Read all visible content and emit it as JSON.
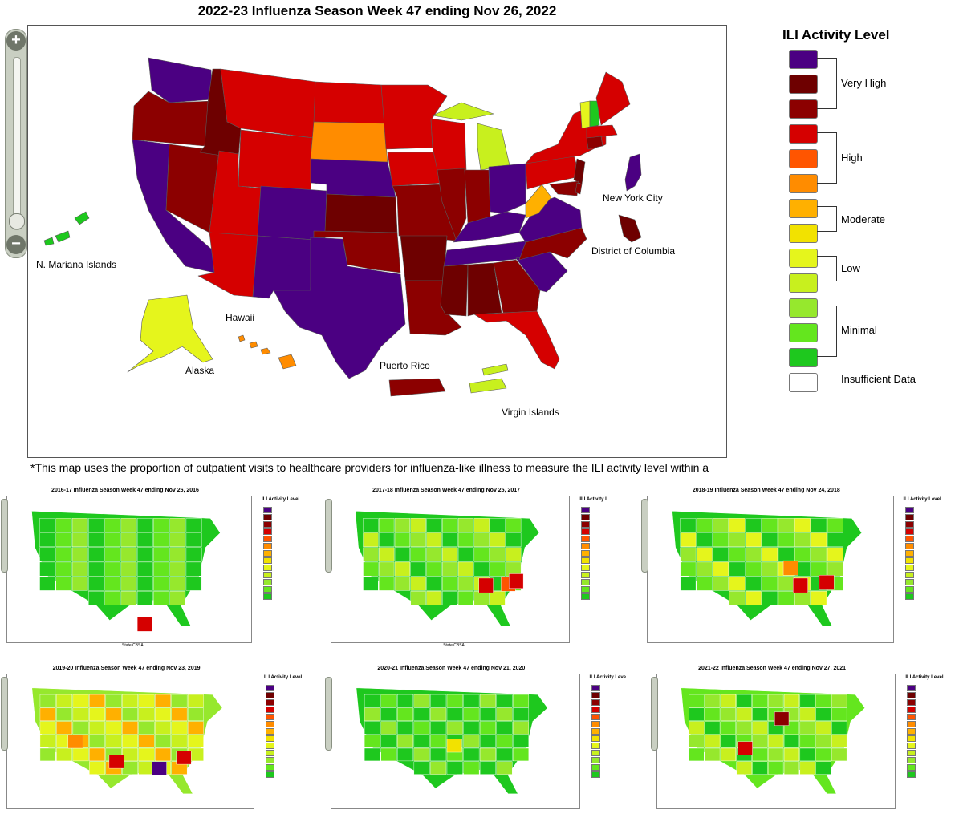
{
  "main_map": {
    "title": "2022-23 Influenza Season Week 47 ending Nov 26, 2022",
    "labels": {
      "new_york_city": "New York City",
      "district_of_columbia": "District of Columbia",
      "n_mariana_islands": "N. Mariana Islands",
      "hawaii": "Hawaii",
      "alaska": "Alaska",
      "puerto_rico": "Puerto Rico",
      "virgin_islands": "Virgin Islands"
    },
    "caption": "*This map uses the proportion of outpatient visits to healthcare providers for influenza-like illness to measure the ILI activity level within a state. It"
  },
  "legend": {
    "title": "ILI Activity Level",
    "groups": [
      "Very High",
      "High",
      "Moderate",
      "Low",
      "Minimal"
    ],
    "insufficient": "Insufficient Data",
    "colors": [
      "#4b0082",
      "#6e0000",
      "#8c0000",
      "#d50000",
      "#ff5500",
      "#ff8c00",
      "#ffb000",
      "#f2e200",
      "#e5f51c",
      "#c8f01e",
      "#96e82d",
      "#64e61e",
      "#1ec81e",
      "#ffffff"
    ]
  },
  "thumbnails": [
    {
      "title": "2016-17 Influenza Season Week 47 ending Nov 26, 2016",
      "legend_title": "ILI Activity Level",
      "extra": "State   CBSA"
    },
    {
      "title": "2017-18 Influenza Season Week 47 ending Nov 25, 2017",
      "legend_title": "ILI Activity L",
      "extra": "State   CBSA"
    },
    {
      "title": "2018-19 Influenza Season Week 47 ending Nov 24, 2018",
      "legend_title": "ILI Activity Level",
      "extra": ""
    },
    {
      "title": "2019-20 Influenza Season Week 47 ending Nov 23, 2019",
      "legend_title": "ILI Activity Level",
      "extra": ""
    },
    {
      "title": "2020-21 Influenza Season Week 47 ending Nov 21, 2020",
      "legend_title": "ILI Activity Leve",
      "extra": ""
    },
    {
      "title": "2021-22 Influenza Season Week 47 ending Nov 27, 2021",
      "legend_title": "ILI Activity Level",
      "extra": ""
    }
  ]
}
